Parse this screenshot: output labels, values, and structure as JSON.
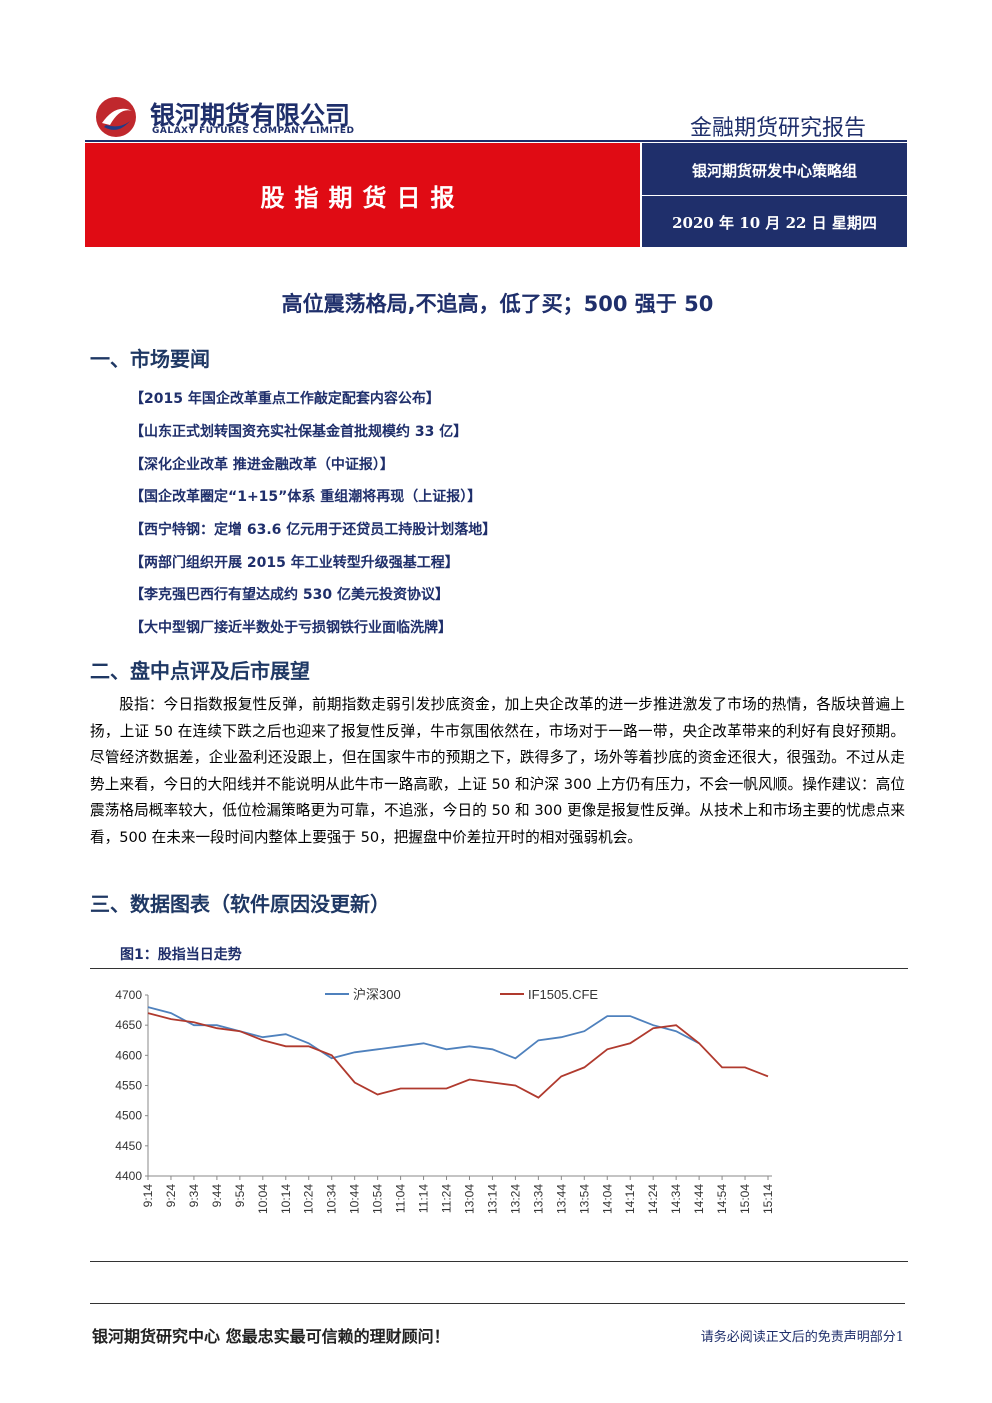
{
  "header": {
    "company": "银河期货有限公司",
    "company_en": "GALAXY FUTURES COMPANY LIMITED",
    "report_type": "金融期货研究报告",
    "banner": "股指期货日报",
    "team": "银河期货研发中心策略组",
    "date": "2020 年 10 月 22 日  星期四"
  },
  "title": "高位震荡格局,不追高，低了买；500 强于 50",
  "sections": [
    {
      "heading": "一、市场要闻",
      "items": [
        "【2015 年国企改革重点工作敲定配套内容公布】",
        "【山东正式划转国资充实社保基金首批规模约 33 亿】",
        "【深化企业改革  推进金融改革（中证报）】",
        "【国企改革圈定“1+15”体系  重组潮将再现（上证报）】",
        "【西宁特钢：定增 63.6 亿元用于还贷员工持股计划落地】",
        "【两部门组织开展 2015 年工业转型升级强基工程】",
        "【李克强巴西行有望达成约 530 亿美元投资协议】",
        "【大中型钢厂接近半数处于亏损钢铁行业面临洗牌】"
      ]
    },
    {
      "heading": "二、盘中点评及后市展望",
      "paragraph": "股指：今日指数报复性反弹，前期指数走弱引发抄底资金，加上央企改革的进一步推进激发了市场的热情，各版块普遍上扬，上证 50 在连续下跌之后也迎来了报复性反弹，牛市氛围依然在，市场对于一路一带，央企改革带来的利好有良好预期。尽管经济数据差，企业盈利还没跟上，但在国家牛市的预期之下，跌得多了，场外等着抄底的资金还很大，很强劲。不过从走势上来看，今日的大阳线并不能说明从此牛市一路高歌，上证 50 和沪深 300 上方仍有压力，不会一帆风顺。操作建议：高位震荡格局概率较大，低位检漏策略更为可靠，不追涨，今日的 50 和 300 更像是报复性反弹。从技术上和市场主要的忧虑点来看，500 在未来一段时间内整体上要强于 50，把握盘中价差拉开时的相对强弱机会。"
    },
    {
      "heading": "三、数据图表（软件原因没更新）"
    }
  ],
  "figure_title": "图1：股指当日走势",
  "chart_data": {
    "type": "line",
    "categories": [
      "9:14",
      "9:24",
      "9:34",
      "9:44",
      "9:54",
      "10:04",
      "10:14",
      "10:24",
      "10:34",
      "10:44",
      "10:54",
      "11:04",
      "11:14",
      "11:24",
      "13:04",
      "13:14",
      "13:24",
      "13:34",
      "13:44",
      "13:54",
      "14:04",
      "14:14",
      "14:24",
      "14:34",
      "14:44",
      "14:54",
      "15:04",
      "15:14"
    ],
    "series": [
      {
        "name": "沪深300",
        "color": "#4f81bd",
        "values": [
          4680,
          4670,
          4650,
          4650,
          4640,
          4630,
          4635,
          4620,
          4595,
          4605,
          4610,
          4615,
          4620,
          4610,
          4615,
          4610,
          4595,
          4625,
          4630,
          4640,
          4665,
          4665,
          4650,
          4640,
          4620,
          null,
          null,
          null
        ]
      },
      {
        "name": "IF1505.CFE",
        "color": "#b03a2e",
        "values": [
          4670,
          4660,
          4655,
          4645,
          4640,
          4625,
          4615,
          4615,
          4600,
          4555,
          4535,
          4545,
          4545,
          4545,
          4560,
          4555,
          4550,
          4530,
          4565,
          4580,
          4610,
          4620,
          4645,
          4650,
          4620,
          4580,
          4580,
          4565
        ]
      }
    ],
    "ylim": [
      4400,
      4700
    ],
    "yticks": [
      4400,
      4450,
      4500,
      4550,
      4600,
      4650,
      4700
    ],
    "legend": "top"
  },
  "footer": {
    "left": "银河期货研究中心    您最忠实最可信赖的理财顾问！",
    "right": "请务必阅读正文后的免责声明部分1"
  }
}
